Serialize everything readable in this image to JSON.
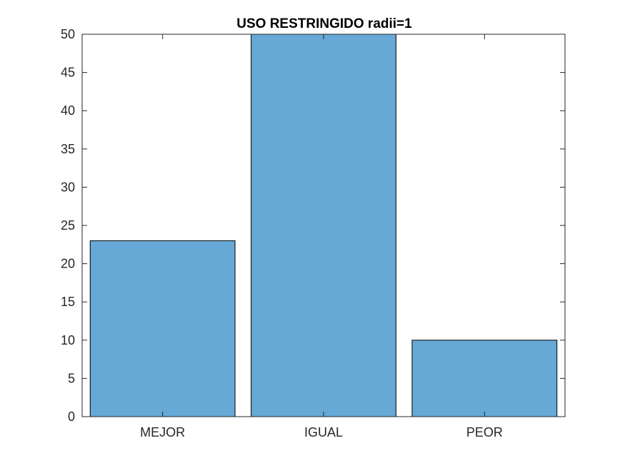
{
  "chart_data": {
    "type": "bar",
    "title": "USO RESTRINGIDO radii=1",
    "categories": [
      "MEJOR",
      "IGUAL",
      "PEOR"
    ],
    "values": [
      23,
      50,
      10
    ],
    "xlabel": "",
    "ylabel": "",
    "ylim": [
      0,
      50
    ],
    "yticks": [
      0,
      5,
      10,
      15,
      20,
      25,
      30,
      35,
      40,
      45,
      50
    ],
    "grid": false,
    "bar_color": "#66a9d6",
    "bar_edge_color": "#000000"
  }
}
